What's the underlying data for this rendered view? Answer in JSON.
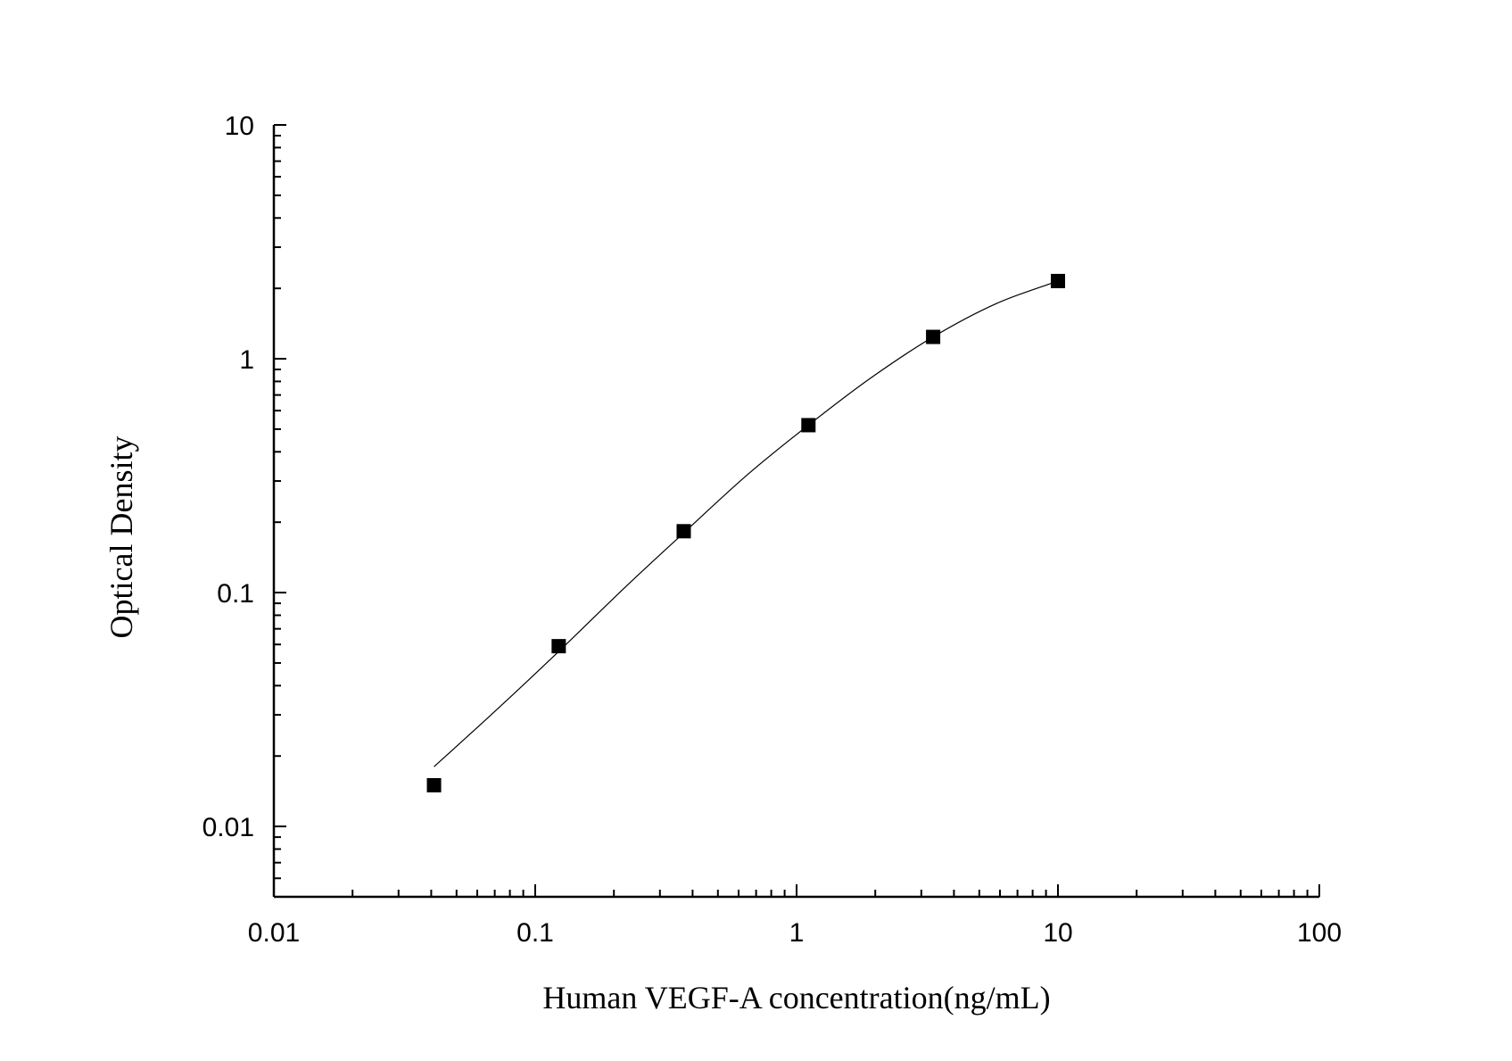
{
  "chart_data": {
    "type": "scatter",
    "xlabel": "Human VEGF-A concentration(ng/mL)",
    "ylabel": "Optical Density",
    "xscale": "log",
    "yscale": "log",
    "xlim": [
      0.01,
      100
    ],
    "ylim": [
      0.005,
      10
    ],
    "x_ticks": [
      {
        "value": 0.01,
        "label": "0.01"
      },
      {
        "value": 0.1,
        "label": "0.1"
      },
      {
        "value": 1,
        "label": "1"
      },
      {
        "value": 10,
        "label": "10"
      },
      {
        "value": 100,
        "label": "100"
      }
    ],
    "y_ticks": [
      {
        "value": 0.01,
        "label": "0.01"
      },
      {
        "value": 0.1,
        "label": "0.1"
      },
      {
        "value": 1,
        "label": "1"
      },
      {
        "value": 10,
        "label": "10"
      }
    ],
    "grid": false,
    "series": [
      {
        "marker": "square",
        "color": "#000000",
        "points": [
          {
            "x": 0.041,
            "y": 0.015
          },
          {
            "x": 0.123,
            "y": 0.059
          },
          {
            "x": 0.37,
            "y": 0.183
          },
          {
            "x": 1.11,
            "y": 0.52
          },
          {
            "x": 3.33,
            "y": 1.24
          },
          {
            "x": 10,
            "y": 2.15
          }
        ]
      }
    ],
    "fit_curve": {
      "color": "#000000",
      "points": [
        {
          "x": 0.041,
          "y": 0.018
        },
        {
          "x": 0.07,
          "y": 0.031
        },
        {
          "x": 0.123,
          "y": 0.056
        },
        {
          "x": 0.22,
          "y": 0.105
        },
        {
          "x": 0.37,
          "y": 0.18
        },
        {
          "x": 0.65,
          "y": 0.32
        },
        {
          "x": 1.11,
          "y": 0.52
        },
        {
          "x": 1.9,
          "y": 0.82
        },
        {
          "x": 3.33,
          "y": 1.24
        },
        {
          "x": 5.8,
          "y": 1.72
        },
        {
          "x": 10,
          "y": 2.15
        }
      ]
    }
  }
}
